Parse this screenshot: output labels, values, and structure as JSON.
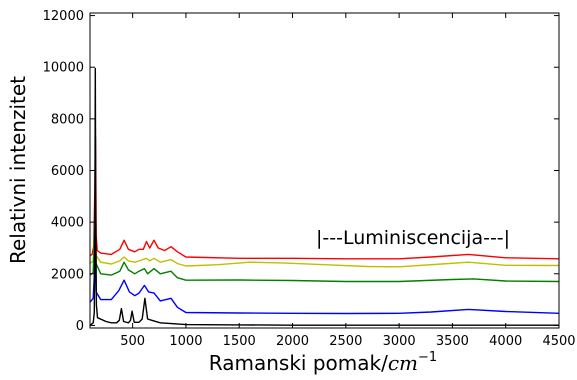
{
  "chart_data": {
    "type": "line",
    "title": "",
    "xlabel": "Ramanski pomak/",
    "xlabel_unit": "cm",
    "xlabel_unit_exp": "−1",
    "ylabel": "Relativni intenzitet",
    "xlim": [
      100,
      4500
    ],
    "ylim": [
      -100,
      12100
    ],
    "xticks": [
      {
        "value": 500,
        "label": "500"
      },
      {
        "value": 1000,
        "label": "1000"
      },
      {
        "value": 1500,
        "label": "1500"
      },
      {
        "value": 2000,
        "label": "2000"
      },
      {
        "value": 2500,
        "label": "2500"
      },
      {
        "value": 3000,
        "label": "3000"
      },
      {
        "value": 3500,
        "label": "3500"
      },
      {
        "value": 4000,
        "label": "4000"
      },
      {
        "value": 4500,
        "label": "4500"
      }
    ],
    "yticks": [
      {
        "value": 0,
        "label": "0"
      },
      {
        "value": 2000,
        "label": "2000"
      },
      {
        "value": 4000,
        "label": "4000"
      },
      {
        "value": 6000,
        "label": "6000"
      },
      {
        "value": 8000,
        "label": "8000"
      },
      {
        "value": 10000,
        "label": "10000"
      },
      {
        "value": 12000,
        "label": "12000"
      }
    ],
    "grid": false,
    "annotation": {
      "text": "|---Luminiscencija---|",
      "x": 2220,
      "y": 3150
    },
    "series": [
      {
        "color": "#ff0000",
        "points": [
          [
            100,
            2700
          ],
          [
            120,
            2750
          ],
          [
            135,
            3050
          ],
          [
            145,
            5200
          ],
          [
            152,
            7300
          ],
          [
            158,
            3500
          ],
          [
            168,
            2900
          ],
          [
            200,
            2800
          ],
          [
            300,
            2750
          ],
          [
            380,
            2950
          ],
          [
            420,
            3300
          ],
          [
            460,
            2950
          ],
          [
            520,
            2850
          ],
          [
            560,
            2950
          ],
          [
            600,
            2950
          ],
          [
            630,
            3250
          ],
          [
            660,
            3000
          ],
          [
            700,
            3300
          ],
          [
            740,
            3000
          ],
          [
            800,
            2900
          ],
          [
            860,
            3050
          ],
          [
            920,
            2850
          ],
          [
            1000,
            2650
          ],
          [
            1500,
            2600
          ],
          [
            2000,
            2600
          ],
          [
            2500,
            2580
          ],
          [
            3000,
            2580
          ],
          [
            3300,
            2650
          ],
          [
            3650,
            2750
          ],
          [
            4000,
            2620
          ],
          [
            4500,
            2580
          ]
        ]
      },
      {
        "color": "#bfbf00",
        "points": [
          [
            100,
            2400
          ],
          [
            130,
            2500
          ],
          [
            148,
            3500
          ],
          [
            158,
            2700
          ],
          [
            200,
            2450
          ],
          [
            300,
            2380
          ],
          [
            380,
            2500
          ],
          [
            420,
            2650
          ],
          [
            460,
            2500
          ],
          [
            520,
            2450
          ],
          [
            560,
            2500
          ],
          [
            630,
            2600
          ],
          [
            660,
            2500
          ],
          [
            700,
            2600
          ],
          [
            760,
            2450
          ],
          [
            860,
            2550
          ],
          [
            920,
            2400
          ],
          [
            1000,
            2300
          ],
          [
            1300,
            2350
          ],
          [
            1600,
            2450
          ],
          [
            1900,
            2420
          ],
          [
            2300,
            2350
          ],
          [
            2700,
            2280
          ],
          [
            3000,
            2270
          ],
          [
            3400,
            2380
          ],
          [
            3650,
            2450
          ],
          [
            4000,
            2330
          ],
          [
            4500,
            2320
          ]
        ]
      },
      {
        "color": "#008000",
        "points": [
          [
            100,
            1950
          ],
          [
            130,
            2050
          ],
          [
            147,
            4200
          ],
          [
            157,
            2400
          ],
          [
            200,
            2000
          ],
          [
            300,
            1950
          ],
          [
            380,
            2100
          ],
          [
            420,
            2450
          ],
          [
            460,
            2150
          ],
          [
            520,
            2000
          ],
          [
            560,
            2100
          ],
          [
            610,
            2200
          ],
          [
            640,
            2000
          ],
          [
            700,
            2200
          ],
          [
            760,
            2000
          ],
          [
            860,
            2100
          ],
          [
            920,
            1850
          ],
          [
            1000,
            1750
          ],
          [
            1500,
            1760
          ],
          [
            2000,
            1740
          ],
          [
            2500,
            1700
          ],
          [
            3000,
            1700
          ],
          [
            3500,
            1780
          ],
          [
            3700,
            1800
          ],
          [
            4000,
            1720
          ],
          [
            4500,
            1700
          ]
        ]
      },
      {
        "color": "#0000ff",
        "points": [
          [
            100,
            900
          ],
          [
            130,
            1050
          ],
          [
            147,
            2500
          ],
          [
            157,
            1300
          ],
          [
            200,
            1000
          ],
          [
            300,
            1000
          ],
          [
            370,
            1350
          ],
          [
            420,
            1750
          ],
          [
            470,
            1300
          ],
          [
            520,
            1150
          ],
          [
            560,
            1250
          ],
          [
            610,
            1550
          ],
          [
            650,
            1300
          ],
          [
            700,
            1250
          ],
          [
            760,
            950
          ],
          [
            860,
            1050
          ],
          [
            920,
            700
          ],
          [
            1000,
            500
          ],
          [
            1500,
            480
          ],
          [
            2000,
            470
          ],
          [
            2500,
            460
          ],
          [
            3000,
            470
          ],
          [
            3300,
            520
          ],
          [
            3650,
            620
          ],
          [
            4000,
            540
          ],
          [
            4500,
            470
          ]
        ]
      },
      {
        "color": "#000000",
        "points": [
          [
            100,
            0
          ],
          [
            130,
            100
          ],
          [
            140,
            500
          ],
          [
            146,
            4000
          ],
          [
            150,
            9950
          ],
          [
            154,
            4000
          ],
          [
            160,
            800
          ],
          [
            170,
            300
          ],
          [
            250,
            150
          ],
          [
            300,
            100
          ],
          [
            350,
            100
          ],
          [
            375,
            200
          ],
          [
            395,
            650
          ],
          [
            415,
            150
          ],
          [
            460,
            100
          ],
          [
            480,
            200
          ],
          [
            495,
            550
          ],
          [
            515,
            120
          ],
          [
            560,
            120
          ],
          [
            590,
            250
          ],
          [
            615,
            1050
          ],
          [
            640,
            250
          ],
          [
            680,
            200
          ],
          [
            760,
            100
          ],
          [
            1000,
            30
          ],
          [
            1500,
            20
          ],
          [
            2000,
            10
          ],
          [
            2500,
            10
          ],
          [
            3000,
            10
          ],
          [
            3500,
            10
          ],
          [
            4000,
            10
          ],
          [
            4500,
            10
          ]
        ]
      }
    ]
  }
}
